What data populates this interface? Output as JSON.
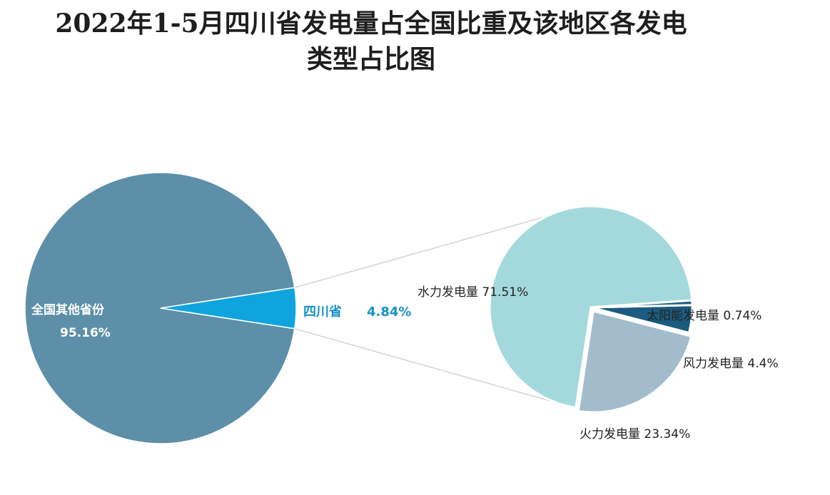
{
  "title": {
    "line1": "2022年1-5月四川省发电量占全国比重及该地区各发电",
    "line2": "类型占比图"
  },
  "chart_data": [
    {
      "type": "pie",
      "slices": [
        {
          "name": "全国其他省份",
          "value": 95.16,
          "value_label": "95.16%",
          "color": "#5d8fa8"
        },
        {
          "name": "四川省",
          "value": 4.84,
          "value_label": "4.84%",
          "color": "#0fa4dd"
        }
      ],
      "label_color_other": "#ffffff",
      "label_color_sichuan": "#1592c9"
    },
    {
      "type": "pie",
      "slices": [
        {
          "name": "水力发电量",
          "value": 71.51,
          "label": "水力发电量 71.51%",
          "color": "#a3d9dc"
        },
        {
          "name": "太阳能发电量",
          "value": 0.74,
          "label": "太阳能发电量 0.74%",
          "color": "#1f6184"
        },
        {
          "name": "风力发电量",
          "value": 4.4,
          "label": "风力发电量 4.4%",
          "color": "#1c5b7f"
        },
        {
          "name": "火力发电量",
          "value": 23.34,
          "label": "火力发电量 23.34%",
          "color": "#a2bccb"
        }
      ]
    }
  ]
}
